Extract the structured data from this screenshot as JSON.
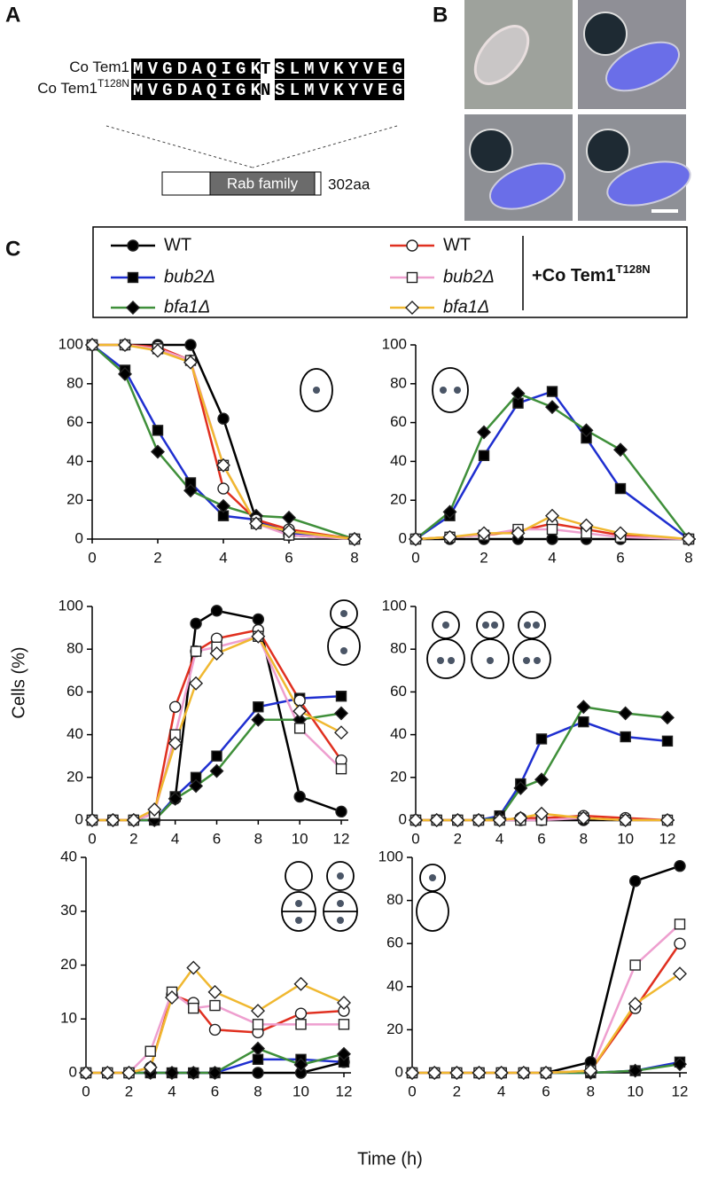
{
  "panel_labels": [
    "A",
    "B",
    "C"
  ],
  "panel_a": {
    "rows": [
      {
        "label": "Co Tem1",
        "before": "MVGDAQIGK",
        "site": "T",
        "after": "SLMVKYVEG"
      },
      {
        "label": "Co Tem1",
        "label_sup": "T128N",
        "before": "MVGDAQIGK",
        "site": "N",
        "after": "SLMVKYVEG"
      }
    ],
    "domain": "Rab family",
    "length": "302aa"
  },
  "legend": {
    "entries": [
      {
        "name": "WT",
        "color": "#000000",
        "marker": "circle",
        "open": false
      },
      {
        "name": "bub2Δ",
        "color": "#1f2fd0",
        "marker": "square",
        "open": false
      },
      {
        "name": "bfa1Δ",
        "color": "#3f8f3a",
        "marker": "diamond",
        "open": false
      },
      {
        "name": "WT",
        "color": "#e03020",
        "marker": "circle",
        "open": true
      },
      {
        "name": "bub2Δ",
        "color": "#ee9fcf",
        "marker": "square",
        "open": true
      },
      {
        "name": "bfa1Δ",
        "color": "#f0b830",
        "marker": "diamond",
        "open": true
      }
    ],
    "group_label": "+Co Tem1",
    "group_label_sup": "T128N"
  },
  "y_label": "Cells (%)",
  "x_label": "Time (h)",
  "chart_data": [
    {
      "type": "line",
      "x": [
        0,
        1,
        2,
        3,
        4,
        5,
        6,
        8
      ],
      "xlim": [
        0,
        8
      ],
      "xticks": [
        0,
        2,
        4,
        6,
        8
      ],
      "ylim": [
        0,
        100
      ],
      "yticks": [
        0,
        20,
        40,
        60,
        80,
        100
      ],
      "series": [
        {
          "color": "#000000",
          "marker": "circle",
          "open": false,
          "values": [
            100,
            100,
            100,
            100,
            62,
            10,
            2,
            0
          ]
        },
        {
          "color": "#1f2fd0",
          "marker": "square",
          "open": false,
          "values": [
            100,
            87,
            56,
            29,
            12,
            10,
            3,
            0
          ]
        },
        {
          "color": "#3f8f3a",
          "marker": "diamond",
          "open": false,
          "values": [
            100,
            85,
            45,
            25,
            17,
            12,
            11,
            0
          ]
        },
        {
          "color": "#e03020",
          "marker": "circle",
          "open": true,
          "values": [
            100,
            100,
            99,
            92,
            26,
            10,
            5,
            0
          ]
        },
        {
          "color": "#ee9fcf",
          "marker": "square",
          "open": true,
          "values": [
            100,
            100,
            98,
            92,
            38,
            8,
            2,
            0
          ]
        },
        {
          "color": "#f0b830",
          "marker": "diamond",
          "open": true,
          "values": [
            100,
            100,
            97,
            91,
            38,
            8,
            4,
            0
          ]
        }
      ]
    },
    {
      "type": "line",
      "x": [
        0,
        1,
        2,
        3,
        4,
        5,
        6,
        8
      ],
      "xlim": [
        0,
        8
      ],
      "xticks": [
        0,
        2,
        4,
        6,
        8
      ],
      "ylim": [
        0,
        100
      ],
      "yticks": [
        0,
        20,
        40,
        60,
        80,
        100
      ],
      "series": [
        {
          "color": "#000000",
          "marker": "circle",
          "open": false,
          "values": [
            0,
            0,
            0,
            0,
            0,
            0,
            0,
            0
          ]
        },
        {
          "color": "#1f2fd0",
          "marker": "square",
          "open": false,
          "values": [
            0,
            12,
            43,
            70,
            76,
            52,
            26,
            0
          ]
        },
        {
          "color": "#3f8f3a",
          "marker": "diamond",
          "open": false,
          "values": [
            0,
            14,
            55,
            75,
            68,
            56,
            46,
            0
          ]
        },
        {
          "color": "#e03020",
          "marker": "circle",
          "open": true,
          "values": [
            0,
            1,
            2,
            4,
            8,
            5,
            2,
            0
          ]
        },
        {
          "color": "#ee9fcf",
          "marker": "square",
          "open": true,
          "values": [
            0,
            1,
            2,
            5,
            5,
            3,
            1,
            0
          ]
        },
        {
          "color": "#f0b830",
          "marker": "diamond",
          "open": true,
          "values": [
            0,
            1,
            3,
            3,
            12,
            7,
            3,
            0
          ]
        }
      ]
    },
    {
      "type": "line",
      "x": [
        0,
        1,
        2,
        3,
        4,
        5,
        6,
        8,
        10,
        12
      ],
      "xlim": [
        0,
        12
      ],
      "xticks": [
        0,
        2,
        4,
        6,
        8,
        10,
        12
      ],
      "ylim": [
        0,
        100
      ],
      "yticks": [
        0,
        20,
        40,
        60,
        80,
        100
      ],
      "series": [
        {
          "color": "#000000",
          "marker": "circle",
          "open": false,
          "values": [
            0,
            0,
            0,
            0,
            10,
            92,
            98,
            94,
            11,
            4
          ]
        },
        {
          "color": "#1f2fd0",
          "marker": "square",
          "open": false,
          "values": [
            0,
            0,
            0,
            0,
            11,
            20,
            30,
            53,
            57,
            58
          ]
        },
        {
          "color": "#3f8f3a",
          "marker": "diamond",
          "open": false,
          "values": [
            0,
            0,
            0,
            0,
            10,
            16,
            23,
            47,
            47,
            50
          ]
        },
        {
          "color": "#e03020",
          "marker": "circle",
          "open": true,
          "values": [
            0,
            0,
            0,
            3,
            53,
            79,
            85,
            89,
            56,
            28
          ]
        },
        {
          "color": "#ee9fcf",
          "marker": "square",
          "open": true,
          "values": [
            0,
            0,
            0,
            3,
            40,
            79,
            81,
            86,
            43,
            24
          ]
        },
        {
          "color": "#f0b830",
          "marker": "diamond",
          "open": true,
          "values": [
            0,
            0,
            0,
            5,
            36,
            64,
            78,
            86,
            51,
            41
          ]
        }
      ]
    },
    {
      "type": "line",
      "x": [
        0,
        1,
        2,
        3,
        4,
        5,
        6,
        8,
        10,
        12
      ],
      "xlim": [
        0,
        12
      ],
      "xticks": [
        0,
        2,
        4,
        6,
        8,
        10,
        12
      ],
      "ylim": [
        0,
        100
      ],
      "yticks": [
        0,
        20,
        40,
        60,
        80,
        100
      ],
      "series": [
        {
          "color": "#000000",
          "marker": "circle",
          "open": false,
          "values": [
            0,
            0,
            0,
            0,
            0,
            0,
            0,
            0,
            0,
            0
          ]
        },
        {
          "color": "#1f2fd0",
          "marker": "square",
          "open": false,
          "values": [
            0,
            0,
            0,
            0,
            2,
            17,
            38,
            46,
            39,
            37
          ]
        },
        {
          "color": "#3f8f3a",
          "marker": "diamond",
          "open": false,
          "values": [
            0,
            0,
            0,
            0,
            1,
            15,
            19,
            53,
            50,
            48
          ]
        },
        {
          "color": "#e03020",
          "marker": "circle",
          "open": true,
          "values": [
            0,
            0,
            0,
            0,
            0,
            1,
            1,
            2,
            1,
            0
          ]
        },
        {
          "color": "#ee9fcf",
          "marker": "square",
          "open": true,
          "values": [
            0,
            0,
            0,
            0,
            0,
            0,
            0,
            1,
            0,
            0
          ]
        },
        {
          "color": "#f0b830",
          "marker": "diamond",
          "open": true,
          "values": [
            0,
            0,
            0,
            0,
            0,
            1,
            3,
            1,
            0,
            0
          ]
        }
      ]
    },
    {
      "type": "line",
      "x": [
        0,
        1,
        2,
        3,
        4,
        5,
        6,
        8,
        10,
        12
      ],
      "xlim": [
        0,
        12
      ],
      "xticks": [
        0,
        2,
        4,
        6,
        8,
        10,
        12
      ],
      "ylim": [
        0,
        40
      ],
      "yticks": [
        0,
        10,
        20,
        30,
        40
      ],
      "series": [
        {
          "color": "#000000",
          "marker": "circle",
          "open": false,
          "values": [
            0,
            0,
            0,
            0,
            0,
            0,
            0,
            0,
            0,
            2
          ]
        },
        {
          "color": "#1f2fd0",
          "marker": "square",
          "open": false,
          "values": [
            0,
            0,
            0,
            0,
            0,
            0,
            0,
            2.5,
            2.5,
            2
          ]
        },
        {
          "color": "#3f8f3a",
          "marker": "diamond",
          "open": false,
          "values": [
            0,
            0,
            0,
            0,
            0,
            0,
            0,
            4.5,
            1.5,
            3.5
          ]
        },
        {
          "color": "#e03020",
          "marker": "circle",
          "open": true,
          "values": [
            0,
            0,
            0,
            1,
            14.5,
            13,
            8,
            7.5,
            11,
            11.5
          ]
        },
        {
          "color": "#ee9fcf",
          "marker": "square",
          "open": true,
          "values": [
            0,
            0,
            0,
            4,
            15,
            12,
            12.5,
            9,
            9,
            9
          ]
        },
        {
          "color": "#f0b830",
          "marker": "diamond",
          "open": true,
          "values": [
            0,
            0,
            0,
            1,
            14,
            19.5,
            15,
            11.5,
            16.5,
            13
          ]
        }
      ]
    },
    {
      "type": "line",
      "x": [
        0,
        1,
        2,
        3,
        4,
        5,
        6,
        8,
        10,
        12
      ],
      "xlim": [
        0,
        12
      ],
      "xticks": [
        0,
        2,
        4,
        6,
        8,
        10,
        12
      ],
      "ylim": [
        0,
        100
      ],
      "yticks": [
        0,
        20,
        40,
        60,
        80,
        100
      ],
      "series": [
        {
          "color": "#000000",
          "marker": "circle",
          "open": false,
          "values": [
            0,
            0,
            0,
            0,
            0,
            0,
            0,
            5,
            89,
            96
          ]
        },
        {
          "color": "#1f2fd0",
          "marker": "square",
          "open": false,
          "values": [
            0,
            0,
            0,
            0,
            0,
            0,
            0,
            0,
            1,
            5
          ]
        },
        {
          "color": "#3f8f3a",
          "marker": "diamond",
          "open": false,
          "values": [
            0,
            0,
            0,
            0,
            0,
            0,
            0,
            0,
            1,
            4
          ]
        },
        {
          "color": "#e03020",
          "marker": "circle",
          "open": true,
          "values": [
            0,
            0,
            0,
            0,
            0,
            0,
            0,
            1,
            30,
            60
          ]
        },
        {
          "color": "#ee9fcf",
          "marker": "square",
          "open": true,
          "values": [
            0,
            0,
            0,
            0,
            0,
            0,
            0,
            1,
            50,
            69
          ]
        },
        {
          "color": "#f0b830",
          "marker": "diamond",
          "open": true,
          "values": [
            0,
            0,
            0,
            0,
            0,
            0,
            0,
            1,
            32,
            46
          ]
        }
      ]
    }
  ]
}
